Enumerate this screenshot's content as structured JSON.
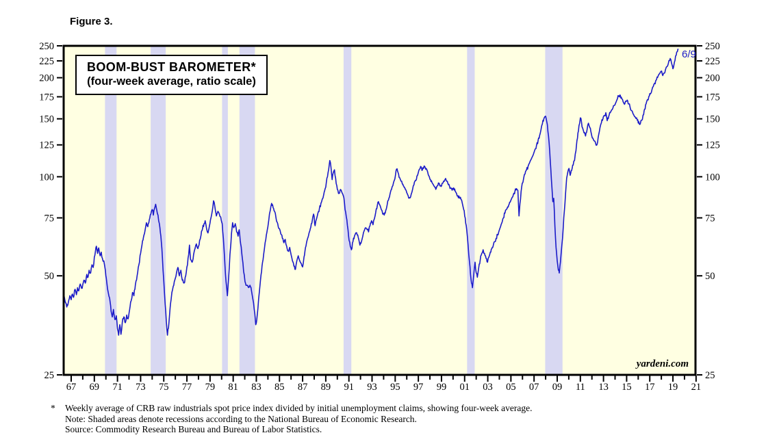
{
  "figure_label": "Figure 3.",
  "footnotes": {
    "star": "*",
    "line1": "Weekly average of CRB raw industrials spot price index divided by initial unemployment claims, showing four-week average.",
    "line2": "Note: Shaded areas denote recessions according to the National Bureau of Economic Research.",
    "line3": "Source: Commodity Research Bureau and Bureau of Labor Statistics."
  },
  "chart_data": {
    "type": "line",
    "title": "BOOM-BUST BAROMETER*",
    "subtitle": "(four-week average, ratio scale)",
    "scale": "log",
    "ylim": [
      25,
      250
    ],
    "yticks": [
      25,
      50,
      75,
      100,
      125,
      150,
      175,
      200,
      225,
      250
    ],
    "xlim": [
      1966.35,
      2020.95
    ],
    "xticks_major": [
      {
        "year": 1967,
        "label": "67"
      },
      {
        "year": 1969,
        "label": "69"
      },
      {
        "year": 1971,
        "label": "71"
      },
      {
        "year": 1973,
        "label": "73"
      },
      {
        "year": 1975,
        "label": "75"
      },
      {
        "year": 1977,
        "label": "77"
      },
      {
        "year": 1979,
        "label": "79"
      },
      {
        "year": 1981,
        "label": "81"
      },
      {
        "year": 1983,
        "label": "83"
      },
      {
        "year": 1985,
        "label": "85"
      },
      {
        "year": 1987,
        "label": "87"
      },
      {
        "year": 1989,
        "label": "89"
      },
      {
        "year": 1991,
        "label": "91"
      },
      {
        "year": 1993,
        "label": "93"
      },
      {
        "year": 1995,
        "label": "95"
      },
      {
        "year": 1997,
        "label": "97"
      },
      {
        "year": 1999,
        "label": "99"
      },
      {
        "year": 2001,
        "label": "01"
      },
      {
        "year": 2003,
        "label": "03"
      },
      {
        "year": 2005,
        "label": "05"
      },
      {
        "year": 2007,
        "label": "07"
      },
      {
        "year": 2009,
        "label": "09"
      },
      {
        "year": 2011,
        "label": "11"
      },
      {
        "year": 2013,
        "label": "13"
      },
      {
        "year": 2015,
        "label": "15"
      },
      {
        "year": 2017,
        "label": "17"
      },
      {
        "year": 2019,
        "label": "19"
      },
      {
        "year": 2021,
        "label": "21"
      }
    ],
    "xticks_minor": [
      1968,
      1970,
      1972,
      1974,
      1976,
      1978,
      1980,
      1982,
      1984,
      1986,
      1988,
      1990,
      1992,
      1994,
      1996,
      1998,
      2000,
      2002,
      2004,
      2006,
      2008,
      2010,
      2012,
      2014,
      2016,
      2018,
      2020
    ],
    "recessions": [
      [
        1969.92,
        1970.92
      ],
      [
        1973.87,
        1975.17
      ],
      [
        1980.04,
        1980.54
      ],
      [
        1981.54,
        1982.88
      ],
      [
        1990.54,
        1991.21
      ],
      [
        2001.21,
        2001.87
      ],
      [
        2007.96,
        2009.46
      ]
    ],
    "last_point_label": "6/9",
    "watermark": "yardeni.com",
    "colors": {
      "line": "#1a1ac8",
      "recession_band": "#d8d8f2",
      "plot_bg": "#ffffe2",
      "axis": "#000000",
      "annotation": "#1a1ac8"
    },
    "series": [
      {
        "name": "Boom-Bust Barometer (four-week average)",
        "x": [
          1966.35,
          1966.5,
          1966.62,
          1966.75,
          1966.88,
          1967.0,
          1967.1,
          1967.2,
          1967.33,
          1967.45,
          1967.55,
          1967.65,
          1967.78,
          1967.9,
          1968.0,
          1968.1,
          1968.22,
          1968.35,
          1968.45,
          1968.55,
          1968.68,
          1968.8,
          1968.9,
          1969.0,
          1969.1,
          1969.18,
          1969.28,
          1969.38,
          1969.5,
          1969.6,
          1969.7,
          1969.82,
          1969.95,
          1970.08,
          1970.2,
          1970.32,
          1970.45,
          1970.55,
          1970.65,
          1970.78,
          1970.9,
          1971.0,
          1971.1,
          1971.2,
          1971.3,
          1971.42,
          1971.55,
          1971.68,
          1971.8,
          1971.92,
          1972.05,
          1972.18,
          1972.3,
          1972.42,
          1972.55,
          1972.7,
          1972.85,
          1973.0,
          1973.12,
          1973.25,
          1973.38,
          1973.5,
          1973.62,
          1973.75,
          1973.88,
          1974.0,
          1974.1,
          1974.2,
          1974.3,
          1974.4,
          1974.5,
          1974.62,
          1974.75,
          1974.88,
          1975.0,
          1975.12,
          1975.22,
          1975.32,
          1975.45,
          1975.58,
          1975.7,
          1975.82,
          1975.95,
          1976.1,
          1976.22,
          1976.35,
          1976.48,
          1976.6,
          1976.75,
          1976.9,
          1977.05,
          1977.15,
          1977.22,
          1977.32,
          1977.45,
          1977.58,
          1977.7,
          1977.82,
          1977.95,
          1978.1,
          1978.22,
          1978.35,
          1978.48,
          1978.58,
          1978.7,
          1978.82,
          1978.95,
          1979.08,
          1979.2,
          1979.3,
          1979.42,
          1979.55,
          1979.68,
          1979.8,
          1979.92,
          1980.05,
          1980.15,
          1980.25,
          1980.38,
          1980.5,
          1980.6,
          1980.72,
          1980.85,
          1980.95,
          1981.05,
          1981.18,
          1981.3,
          1981.42,
          1981.52,
          1981.65,
          1981.78,
          1981.9,
          1982.02,
          1982.15,
          1982.3,
          1982.45,
          1982.58,
          1982.7,
          1982.82,
          1982.95,
          1983.08,
          1983.2,
          1983.32,
          1983.45,
          1983.58,
          1983.7,
          1983.82,
          1983.95,
          1984.08,
          1984.2,
          1984.32,
          1984.45,
          1984.58,
          1984.7,
          1984.85,
          1985.0,
          1985.12,
          1985.25,
          1985.38,
          1985.5,
          1985.62,
          1985.75,
          1985.88,
          1986.0,
          1986.12,
          1986.25,
          1986.38,
          1986.5,
          1986.62,
          1986.75,
          1986.88,
          1987.0,
          1987.12,
          1987.25,
          1987.38,
          1987.5,
          1987.62,
          1987.75,
          1987.88,
          1987.95,
          1988.08,
          1988.2,
          1988.32,
          1988.45,
          1988.58,
          1988.7,
          1988.82,
          1988.95,
          1989.05,
          1989.15,
          1989.25,
          1989.35,
          1989.45,
          1989.55,
          1989.65,
          1989.75,
          1989.85,
          1989.95,
          1990.05,
          1990.15,
          1990.28,
          1990.4,
          1990.52,
          1990.62,
          1990.72,
          1990.82,
          1990.92,
          1991.02,
          1991.12,
          1991.22,
          1991.35,
          1991.48,
          1991.6,
          1991.72,
          1991.85,
          1991.95,
          1992.08,
          1992.2,
          1992.32,
          1992.45,
          1992.58,
          1992.7,
          1992.82,
          1992.95,
          1993.08,
          1993.2,
          1993.32,
          1993.45,
          1993.55,
          1993.68,
          1993.8,
          1993.92,
          1994.05,
          1994.18,
          1994.3,
          1994.42,
          1994.55,
          1994.68,
          1994.8,
          1994.92,
          1995.02,
          1995.12,
          1995.25,
          1995.38,
          1995.5,
          1995.62,
          1995.75,
          1995.88,
          1996.0,
          1996.12,
          1996.25,
          1996.38,
          1996.5,
          1996.62,
          1996.75,
          1996.88,
          1997.0,
          1997.1,
          1997.2,
          1997.32,
          1997.45,
          1997.55,
          1997.68,
          1997.8,
          1997.92,
          1998.05,
          1998.18,
          1998.3,
          1998.42,
          1998.55,
          1998.68,
          1998.8,
          1998.92,
          1999.05,
          1999.18,
          1999.3,
          1999.42,
          1999.55,
          1999.68,
          1999.8,
          1999.92,
          2000.05,
          2000.18,
          2000.3,
          2000.42,
          2000.55,
          2000.68,
          2000.8,
          2000.92,
          2001.05,
          2001.18,
          2001.3,
          2001.42,
          2001.55,
          2001.68,
          2001.8,
          2001.9,
          2002.0,
          2002.1,
          2002.22,
          2002.35,
          2002.48,
          2002.6,
          2002.72,
          2002.85,
          2002.98,
          2003.1,
          2003.22,
          2003.35,
          2003.48,
          2003.6,
          2003.72,
          2003.85,
          2003.98,
          2004.1,
          2004.22,
          2004.35,
          2004.48,
          2004.6,
          2004.72,
          2004.85,
          2004.98,
          2005.1,
          2005.22,
          2005.35,
          2005.48,
          2005.6,
          2005.7,
          2005.78,
          2005.88,
          2005.98,
          2006.1,
          2006.22,
          2006.35,
          2006.48,
          2006.6,
          2006.72,
          2006.85,
          2006.98,
          2007.1,
          2007.22,
          2007.35,
          2007.48,
          2007.6,
          2007.72,
          2007.85,
          2007.95,
          2008.05,
          2008.15,
          2008.25,
          2008.35,
          2008.45,
          2008.55,
          2008.62,
          2008.7,
          2008.8,
          2008.9,
          2009.0,
          2009.1,
          2009.18,
          2009.28,
          2009.4,
          2009.52,
          2009.62,
          2009.72,
          2009.82,
          2009.92,
          2010.02,
          2010.12,
          2010.25,
          2010.38,
          2010.5,
          2010.62,
          2010.75,
          2010.88,
          2011.0,
          2011.1,
          2011.2,
          2011.32,
          2011.45,
          2011.58,
          2011.7,
          2011.82,
          2011.95,
          2012.08,
          2012.2,
          2012.32,
          2012.45,
          2012.58,
          2012.7,
          2012.82,
          2012.95,
          2013.08,
          2013.2,
          2013.32,
          2013.45,
          2013.58,
          2013.7,
          2013.82,
          2013.95,
          2014.08,
          2014.2,
          2014.32,
          2014.45,
          2014.58,
          2014.7,
          2014.82,
          2014.95,
          2015.05,
          2015.18,
          2015.3,
          2015.42,
          2015.55,
          2015.68,
          2015.8,
          2015.92,
          2016.05,
          2016.18,
          2016.3,
          2016.42,
          2016.55,
          2016.68,
          2016.8,
          2016.92,
          2017.05,
          2017.18,
          2017.3,
          2017.42,
          2017.55,
          2017.68,
          2017.8,
          2017.92,
          2018.02,
          2018.12,
          2018.22,
          2018.35,
          2018.48,
          2018.6,
          2018.72,
          2018.82,
          2018.92,
          2019.0,
          2019.08,
          2019.18,
          2019.28,
          2019.38,
          2019.45
        ],
        "y": [
          44,
          41.5,
          40.2,
          41.5,
          43.5,
          42.3,
          44,
          43,
          45.5,
          43.8,
          46,
          45,
          47.2,
          45.8,
          47,
          48.5,
          47.5,
          50.5,
          49.5,
          52,
          51,
          54,
          53,
          57,
          59.5,
          61.5,
          58.5,
          60.8,
          57.5,
          59,
          56.5,
          55.5,
          52,
          47.5,
          44.5,
          42.8,
          39,
          37.5,
          39.5,
          36.8,
          37.8,
          34.5,
          33,
          35.5,
          33.2,
          36.2,
          37.5,
          36,
          38,
          37,
          39.5,
          42,
          44.5,
          43.5,
          47,
          50,
          54,
          58.5,
          62,
          65.5,
          68.5,
          72.5,
          70.5,
          74,
          77,
          79.5,
          76.5,
          80,
          82.5,
          79,
          76.5,
          72,
          66,
          57,
          48.5,
          41,
          36.5,
          33,
          36,
          41,
          44.5,
          46.5,
          48.5,
          51,
          53,
          50,
          52,
          48.5,
          47.5,
          50,
          54,
          58,
          62,
          56,
          55,
          58,
          60.5,
          62.5,
          60.5,
          64,
          66.5,
          69.5,
          72,
          73.5,
          69.5,
          67.5,
          71,
          75,
          79,
          84.5,
          81,
          76,
          78.5,
          77,
          75.5,
          72,
          65,
          57,
          48,
          43.5,
          49,
          58,
          67,
          72.5,
          70,
          72,
          68,
          66,
          69,
          62.5,
          57,
          51.5,
          48,
          46.8,
          46.2,
          46.8,
          45,
          42.5,
          39.5,
          35.5,
          38,
          42.5,
          47,
          51.5,
          56,
          60.5,
          64.5,
          69,
          74,
          79,
          83,
          80.5,
          78.5,
          75,
          72,
          69.5,
          67,
          65,
          63,
          64.5,
          61.5,
          59.5,
          61,
          58,
          55.5,
          53.5,
          52.3,
          55.5,
          57.5,
          55.5,
          54.5,
          53.2,
          57,
          61,
          64,
          66,
          68.5,
          72,
          75.5,
          77,
          71,
          74.5,
          77.5,
          80,
          83,
          85.5,
          88,
          92,
          96,
          100,
          105,
          112,
          107,
          98,
          103,
          105,
          99,
          94,
          91,
          89,
          91.5,
          89.5,
          87.5,
          83,
          78,
          74,
          69,
          64,
          61.5,
          60,
          63.5,
          66,
          67.5,
          66.5,
          64.5,
          62,
          63.5,
          66,
          68.5,
          70,
          69,
          68,
          71,
          73.5,
          71.5,
          74.5,
          78,
          81.5,
          84,
          82,
          79.5,
          77,
          76.5,
          79,
          82,
          85,
          88.5,
          91.5,
          94,
          97.5,
          101,
          105.5,
          103,
          99.5,
          97,
          95,
          93.5,
          91.5,
          89.5,
          87.5,
          86.5,
          88.5,
          91.5,
          94.5,
          97.5,
          100.5,
          103,
          105.5,
          107.5,
          104.5,
          106,
          107.5,
          106,
          103.5,
          100.5,
          98,
          96,
          94.5,
          93,
          92.2,
          94,
          95.5,
          94,
          95.5,
          97,
          98,
          97.2,
          95.5,
          94,
          92.5,
          91,
          92.5,
          90.5,
          89,
          87.5,
          86.5,
          85.5,
          83,
          79.5,
          75,
          69,
          62,
          55,
          49,
          46,
          51,
          55,
          51,
          49.5,
          53,
          56,
          58.5,
          60,
          58.5,
          56.5,
          55,
          57,
          59,
          60.5,
          62,
          63.5,
          65,
          66.5,
          68.5,
          70.5,
          72.5,
          75,
          77.5,
          79.5,
          81,
          82.5,
          84.5,
          86.5,
          88.5,
          90.5,
          92,
          91,
          76,
          83,
          90,
          95.5,
          99,
          102,
          105,
          107.5,
          110,
          112.5,
          115,
          118,
          121.5,
          125,
          129,
          133.5,
          139,
          145,
          150,
          152.5,
          150,
          144,
          133,
          120,
          105,
          92,
          84,
          86,
          71,
          61,
          55.5,
          52,
          51,
          55,
          62,
          70,
          79,
          89,
          99,
          103.5,
          106,
          101,
          104.5,
          108.5,
          112,
          120,
          131,
          143,
          151,
          146.5,
          140.5,
          136,
          133,
          139,
          145.5,
          141,
          135,
          131,
          128.5,
          126.5,
          125.5,
          134,
          141,
          146,
          150,
          153.5,
          156.5,
          148,
          152.5,
          156.5,
          159.5,
          162,
          165,
          168.5,
          172.5,
          176,
          177,
          172.5,
          169,
          166,
          169.5,
          171,
          166.5,
          162.5,
          159,
          155.5,
          152.5,
          150.5,
          148.5,
          147,
          145,
          148.5,
          154,
          160.5,
          166.5,
          171.5,
          175.5,
          178.5,
          183.5,
          188,
          192.5,
          196.5,
          200.5,
          205,
          208,
          209.5,
          203,
          206.5,
          211,
          216,
          221,
          225.5,
          227,
          219,
          213,
          218,
          226,
          234,
          240,
          245
        ]
      }
    ]
  }
}
